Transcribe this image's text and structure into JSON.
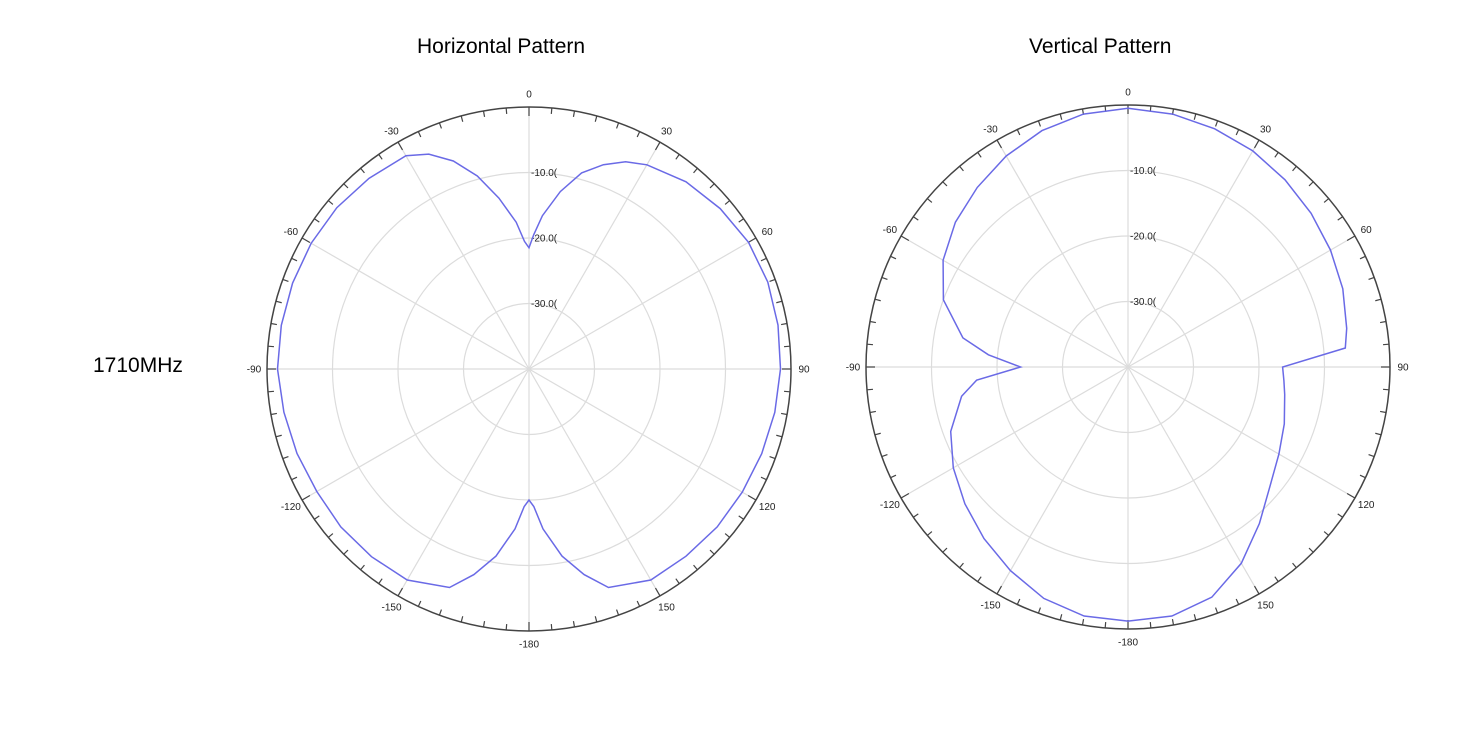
{
  "row_label": "1710MHz",
  "chart_data": [
    {
      "type": "polar-line",
      "title": "Horizontal Pattern",
      "radial_range_db": [
        -40,
        0
      ],
      "rings_db": [
        -10,
        -20,
        -30
      ],
      "ring_labels": [
        "-10.0(",
        "-20.0(",
        "-30.0("
      ],
      "angle_labels": [
        "0",
        "30",
        "60",
        "90",
        "120",
        "150",
        "-180",
        "-150",
        "-120",
        "-90",
        "-60",
        "-30"
      ],
      "grid": true,
      "series": [
        {
          "color": "#6a6ae6",
          "angles_deg": [
            0,
            2,
            5,
            10,
            15,
            20,
            25,
            30,
            40,
            50,
            60,
            70,
            80,
            90,
            100,
            110,
            120,
            130,
            140,
            150,
            160,
            165,
            170,
            175,
            178,
            180,
            182,
            185,
            190,
            195,
            200,
            210,
            220,
            230,
            240,
            250,
            260,
            270,
            280,
            290,
            300,
            310,
            320,
            330,
            335,
            340,
            345,
            350,
            355,
            358
          ],
          "gain_db": [
            -21.5,
            -19.5,
            -16.5,
            -12.5,
            -9.0,
            -6.8,
            -5.1,
            -4.0,
            -2.7,
            -1.9,
            -1.3,
            -1.2,
            -1.4,
            -1.6,
            -1.9,
            -2.2,
            -2.4,
            -2.5,
            -2.7,
            -2.8,
            -4.5,
            -7.5,
            -11.0,
            -15.5,
            -19.0,
            -20.0,
            -19.0,
            -15.5,
            -11.0,
            -7.5,
            -4.5,
            -2.8,
            -2.6,
            -2.5,
            -2.6,
            -2.3,
            -2.0,
            -1.6,
            -1.6,
            -1.6,
            -1.6,
            -1.7,
            -2.0,
            -2.4,
            -3.8,
            -6.2,
            -9.5,
            -13.5,
            -17.5,
            -20.5
          ]
        }
      ]
    },
    {
      "type": "polar-line",
      "title": "Vertical Pattern",
      "radial_range_db": [
        -40,
        0
      ],
      "rings_db": [
        -10,
        -20,
        -30
      ],
      "ring_labels": [
        "-10.0(",
        "-20.0(",
        "-30.0("
      ],
      "angle_labels": [
        "0",
        "30",
        "60",
        "90",
        "120",
        "150",
        "-180",
        "-150",
        "-120",
        "-90",
        "-60",
        "-30"
      ],
      "grid": true,
      "series": [
        {
          "color": "#6a6ae6",
          "angles_deg": [
            0,
            10,
            20,
            30,
            40,
            50,
            60,
            70,
            80,
            85,
            90,
            95,
            100,
            110,
            120,
            130,
            140,
            150,
            160,
            170,
            180,
            190,
            200,
            210,
            220,
            230,
            240,
            250,
            260,
            265,
            270,
            275,
            280,
            290,
            300,
            310,
            320,
            330,
            340,
            350
          ],
          "gain_db": [
            -0.5,
            -0.8,
            -1.3,
            -1.9,
            -2.7,
            -3.5,
            -4.3,
            -5.1,
            -6.1,
            -6.7,
            -16.4,
            -16.1,
            -15.7,
            -14.6,
            -13.4,
            -11.7,
            -8.8,
            -5.4,
            -2.6,
            -1.4,
            -1.2,
            -1.4,
            -2.4,
            -4.1,
            -5.8,
            -7.5,
            -9.2,
            -11.2,
            -14.2,
            -16.8,
            -23.6,
            -18.6,
            -14.4,
            -10.0,
            -7.4,
            -5.6,
            -4.2,
            -2.8,
            -1.6,
            -0.8
          ]
        }
      ]
    }
  ]
}
